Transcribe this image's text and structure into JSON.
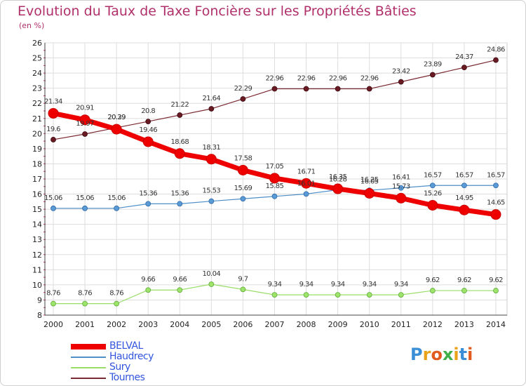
{
  "chart_data": {
    "type": "line",
    "title": "Evolution du Taux de Taxe Foncière sur les Propriétés Bâties",
    "ylabel": "(en %)",
    "xlabel": "",
    "x": [
      "2000",
      "2001",
      "2002",
      "2003",
      "2004",
      "2005",
      "2006",
      "2007",
      "2008",
      "2009",
      "2010",
      "2011",
      "2012",
      "2013",
      "2014"
    ],
    "ylim": [
      8,
      26
    ],
    "yticks": [
      8,
      9,
      10,
      11,
      12,
      13,
      14,
      15,
      16,
      17,
      18,
      19,
      20,
      21,
      22,
      23,
      24,
      25,
      26
    ],
    "grid": true,
    "legend": "bottom-left",
    "series": [
      {
        "name": "BELVAL",
        "color": "#ee0000",
        "values": [
          21.34,
          20.91,
          20.29,
          19.46,
          18.68,
          18.31,
          17.58,
          17.05,
          16.71,
          16.35,
          16.05,
          15.73,
          15.26,
          14.95,
          14.65
        ]
      },
      {
        "name": "Haudrecy",
        "color": "#4f8fc8",
        "values": [
          15.06,
          15.06,
          15.06,
          15.36,
          15.36,
          15.53,
          15.69,
          15.85,
          16.01,
          16.28,
          16.25,
          16.41,
          16.57,
          16.57,
          16.57
        ]
      },
      {
        "name": "Sury",
        "color": "#99dd66",
        "values": [
          8.76,
          8.76,
          8.76,
          9.66,
          9.66,
          10.04,
          9.7,
          9.34,
          9.34,
          9.34,
          9.34,
          9.34,
          9.62,
          9.62,
          9.62
        ]
      },
      {
        "name": "Tournes",
        "color": "#7a2a32",
        "values": [
          19.6,
          19.97,
          20.39,
          20.8,
          21.22,
          21.64,
          22.29,
          22.96,
          22.96,
          22.96,
          22.96,
          23.42,
          23.89,
          24.37,
          24.86
        ]
      }
    ]
  },
  "brand": {
    "text": "Proxiti"
  }
}
